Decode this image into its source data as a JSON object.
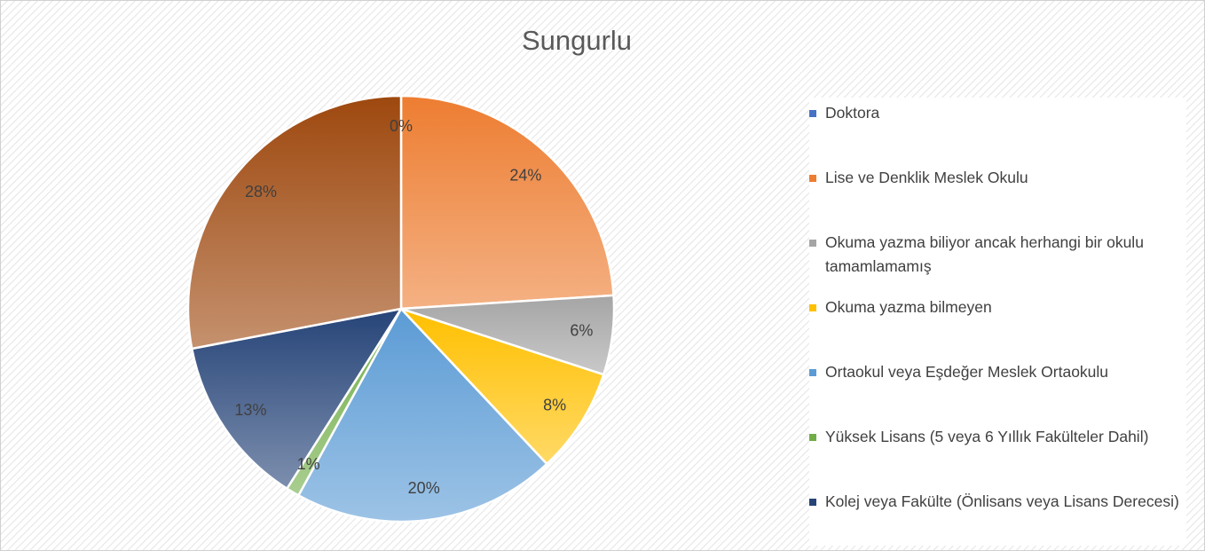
{
  "chart_data": {
    "type": "pie",
    "title": "Sungurlu",
    "categories": [
      "Doktora",
      "Lise ve Denklik Meslek Okulu",
      "Okuma yazma biliyor ancak herhangi bir okulu tamamlamamış",
      "Okuma yazma bilmeyen",
      "Ortaokul veya Eşdeğer Meslek Ortaokulu",
      "Yüksek Lisans (5 veya 6 Yıllık Fakülteler Dahil)",
      "Kolej veya Fakülte (Önlisans veya Lisans Derecesi)",
      null
    ],
    "values": [
      0,
      24,
      6,
      8,
      20,
      1,
      13,
      28
    ],
    "value_labels": [
      "0%",
      "24%",
      "6%",
      "8%",
      "20%",
      "1%",
      "13%",
      "28%"
    ],
    "colors": [
      "#4472c4",
      "#ed7d31",
      "#a5a5a5",
      "#ffc000",
      "#5b9bd5",
      "#70ad47",
      "#264478",
      "#9e480e"
    ],
    "legend": "right"
  }
}
